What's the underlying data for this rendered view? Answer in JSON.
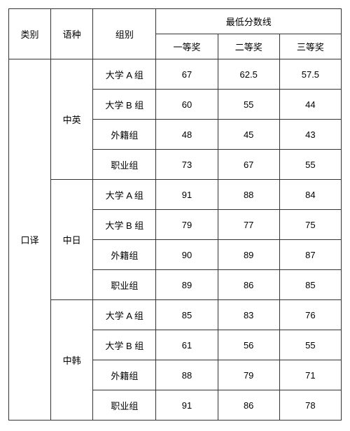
{
  "headers": {
    "category": "类别",
    "language": "语种",
    "group": "组别",
    "scoreHeader": "最低分数线",
    "prize1": "一等奖",
    "prize2": "二等奖",
    "prize3": "三等奖"
  },
  "category": "口译",
  "languages": [
    {
      "name": "中英",
      "rows": [
        {
          "group": "大学 A 组",
          "p1": "67",
          "p2": "62.5",
          "p3": "57.5"
        },
        {
          "group": "大学 B 组",
          "p1": "60",
          "p2": "55",
          "p3": "44"
        },
        {
          "group": "外籍组",
          "p1": "48",
          "p2": "45",
          "p3": "43"
        },
        {
          "group": "职业组",
          "p1": "73",
          "p2": "67",
          "p3": "55"
        }
      ]
    },
    {
      "name": "中日",
      "rows": [
        {
          "group": "大学 A 组",
          "p1": "91",
          "p2": "88",
          "p3": "84"
        },
        {
          "group": "大学 B 组",
          "p1": "79",
          "p2": "77",
          "p3": "75"
        },
        {
          "group": "外籍组",
          "p1": "90",
          "p2": "89",
          "p3": "87"
        },
        {
          "group": "职业组",
          "p1": "89",
          "p2": "86",
          "p3": "85"
        }
      ]
    },
    {
      "name": "中韩",
      "rows": [
        {
          "group": "大学 A 组",
          "p1": "85",
          "p2": "83",
          "p3": "76"
        },
        {
          "group": "大学 B 组",
          "p1": "61",
          "p2": "56",
          "p3": "55"
        },
        {
          "group": "外籍组",
          "p1": "88",
          "p2": "79",
          "p3": "71"
        },
        {
          "group": "职业组",
          "p1": "91",
          "p2": "86",
          "p3": "78"
        }
      ]
    }
  ]
}
